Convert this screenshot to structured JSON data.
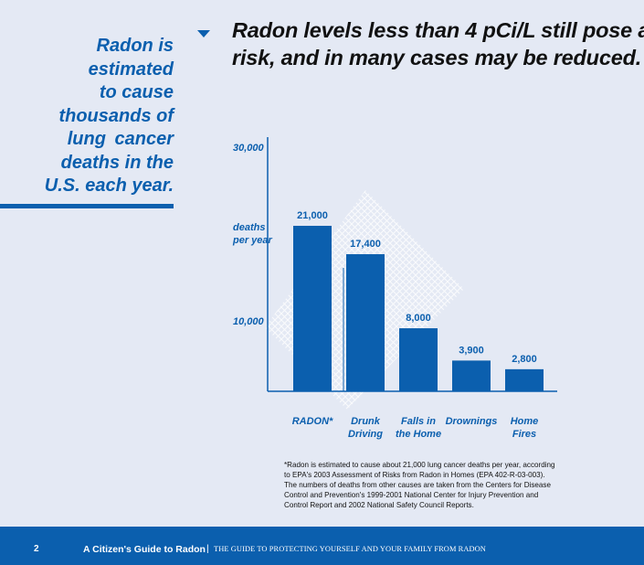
{
  "sidebar_quote": [
    "Radon is",
    "estimated",
    "to cause",
    "thousands of",
    "lung  cancer",
    "deaths in the",
    "U.S. each year."
  ],
  "headline": [
    "Radon levels less than 4 pCi/L still pose a",
    "risk, and in many cases may be reduced."
  ],
  "chart_data": {
    "type": "bar",
    "categories": [
      [
        "RADON*"
      ],
      [
        "Drunk",
        "Driving"
      ],
      [
        "Falls in",
        "the Home"
      ],
      [
        "Drownings"
      ],
      [
        "Home",
        "Fires"
      ]
    ],
    "values": [
      21000,
      17400,
      8000,
      3900,
      2800
    ],
    "value_labels": [
      "21,000",
      "17,400",
      "8,000",
      "3,900",
      "2,800"
    ],
    "ylabel": [
      "deaths",
      "per year"
    ],
    "yticks": [
      "10,000",
      "30,000"
    ],
    "ylim": [
      0,
      30000
    ],
    "colors": {
      "bar": "#0b5fae",
      "pattern": "#ffffff",
      "text": "#0b5fae"
    }
  },
  "footnote": "*Radon is estimated to cause about 21,000 lung cancer deaths per year, according to EPA's 2003 Assessment of Risks from Radon in Homes (EPA 402-R-03-003).  The numbers of deaths from other causes are taken from the Centers for Disease Control and Prevention's 1999-2001 National Center for Injury Prevention and Control Report and 2002 National Safety Council Reports.",
  "footer": {
    "page_number": "2",
    "guide_title": "A Citizen's Guide to Radon",
    "separator": "|",
    "subtitle": "THE GUIDE TO PROTECTING YOURSELF AND YOUR FAMILY FROM RADON"
  }
}
